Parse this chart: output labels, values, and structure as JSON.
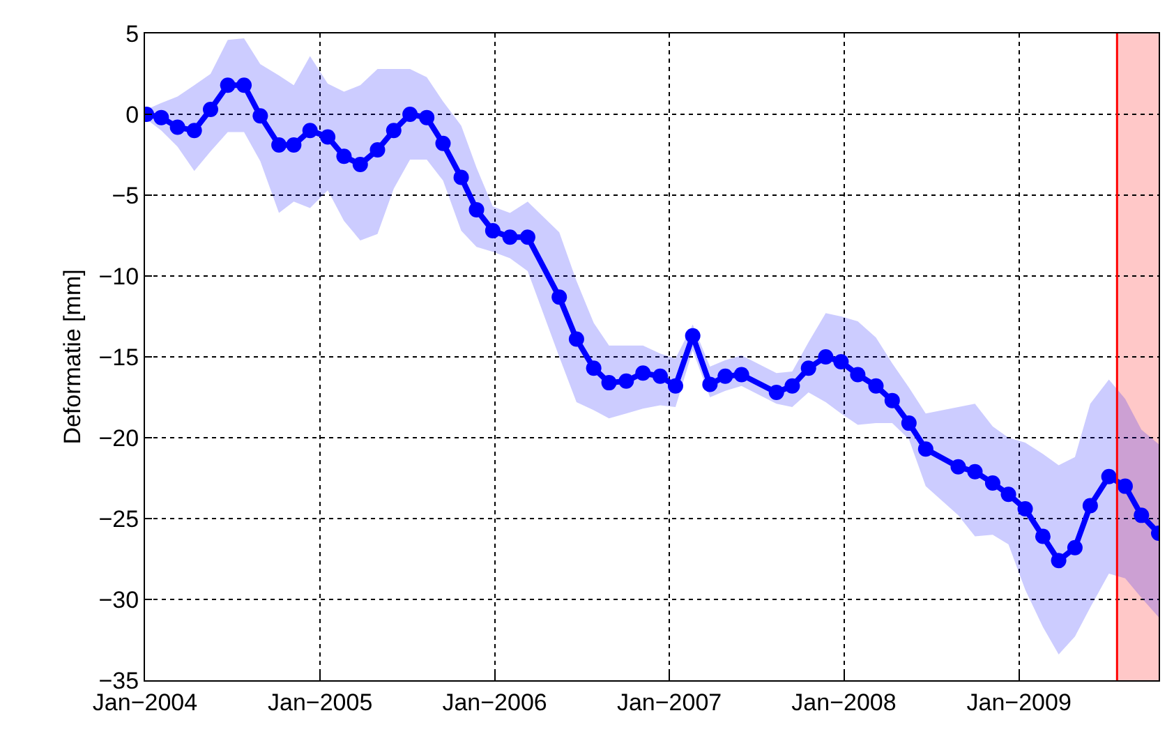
{
  "chart_data": {
    "type": "line",
    "ylabel": "Deformatie [mm]",
    "x": [
      "2004-01-04",
      "2004-02-04",
      "2004-03-09",
      "2004-04-13",
      "2004-05-17",
      "2004-06-22",
      "2004-07-26",
      "2004-08-29",
      "2004-10-07",
      "2004-11-07",
      "2004-12-11",
      "2005-01-17",
      "2005-02-20",
      "2005-03-26",
      "2005-05-01",
      "2005-06-04",
      "2005-07-08",
      "2005-08-12",
      "2005-09-15",
      "2005-10-23",
      "2005-11-24",
      "2005-12-28",
      "2006-02-02",
      "2006-03-11",
      "2006-05-16",
      "2006-06-21",
      "2006-07-27",
      "2006-08-28",
      "2006-10-03",
      "2006-11-07",
      "2006-12-13",
      "2007-01-14",
      "2007-02-19",
      "2007-03-27",
      "2007-04-28",
      "2007-06-01",
      "2007-08-13",
      "2007-09-15",
      "2007-10-19",
      "2007-11-24",
      "2007-12-26",
      "2008-01-30",
      "2008-03-08",
      "2008-04-11",
      "2008-05-16",
      "2008-06-20",
      "2008-08-27",
      "2008-10-01",
      "2008-11-07",
      "2008-12-10",
      "2009-01-14",
      "2009-02-20",
      "2009-03-25",
      "2009-04-28",
      "2009-05-30",
      "2009-07-08",
      "2009-08-11",
      "2009-09-14",
      "2009-10-20"
    ],
    "series": [
      {
        "color": "#0000ff",
        "marker": "circle",
        "line_style": "solid",
        "values": [
          0,
          -0.2,
          -0.8,
          -1.0,
          0.3,
          1.8,
          1.8,
          -0.1,
          -1.9,
          -1.9,
          -1.0,
          -1.4,
          -2.6,
          -3.1,
          -2.2,
          -1.0,
          0,
          -0.2,
          -1.8,
          -3.9,
          -5.9,
          -7.2,
          -7.6,
          -7.6,
          -11.3,
          -13.9,
          -15.7,
          -16.6,
          -16.5,
          -16.0,
          -16.2,
          -16.8,
          -13.7,
          -16.7,
          -16.2,
          -16.1,
          -17.2,
          -16.8,
          -15.7,
          -15.0,
          -15.3,
          -16.1,
          -16.8,
          -17.7,
          -19.1,
          -20.7,
          -21.8,
          -22.1,
          -22.8,
          -23.5,
          -24.4,
          -26.1,
          -27.6,
          -26.8,
          -24.2,
          -22.4,
          -23.0,
          -24.8,
          -25.9
        ],
        "upper": [
          0.3,
          0.7,
          1.1,
          1.8,
          2.5,
          4.6,
          4.7,
          3.1,
          2.4,
          1.8,
          3.6,
          1.9,
          1.4,
          1.8,
          2.8,
          2.8,
          2.8,
          2.3,
          0.8,
          -0.7,
          -3.3,
          -5.7,
          -6.1,
          -5.4,
          -7.3,
          -10.3,
          -12.9,
          -14.3,
          -14.3,
          -14.3,
          -14.8,
          -15.1,
          -13.0,
          -15.6,
          -15.2,
          -14.9,
          -16.0,
          -15.9,
          -14.1,
          -12.3,
          -12.5,
          -12.8,
          -13.8,
          -15.4,
          -16.9,
          -18.5,
          -18.1,
          -17.9,
          -19.3,
          -20.0,
          -20.3,
          -21.0,
          -21.7,
          -21.2,
          -17.9,
          -16.4,
          -17.6,
          -19.5,
          -20.4
        ],
        "lower": [
          -0.3,
          -1.0,
          -2.0,
          -3.5,
          -2.3,
          -1.1,
          -1.1,
          -2.9,
          -6.1,
          -5.4,
          -5.8,
          -4.7,
          -6.6,
          -7.8,
          -7.4,
          -4.6,
          -2.8,
          -2.8,
          -4.1,
          -7.2,
          -8.2,
          -8.5,
          -8.9,
          -9.7,
          -15.0,
          -17.8,
          -18.3,
          -18.8,
          -18.5,
          -18.2,
          -18.0,
          -18.1,
          -14.6,
          -17.5,
          -17.1,
          -16.8,
          -17.9,
          -18.1,
          -17.2,
          -17.8,
          -18.5,
          -19.2,
          -19.1,
          -19.1,
          -20.1,
          -23.0,
          -24.8,
          -26.1,
          -26.0,
          -26.6,
          -29.4,
          -31.7,
          -33.4,
          -32.3,
          -30.5,
          -28.4,
          -28.7,
          -29.9,
          -31.1
        ]
      }
    ],
    "xlim": [
      "2004-01-01",
      "2009-10-20"
    ],
    "xticks": [
      {
        "value": "2004-01-01",
        "label": "Jan−2004"
      },
      {
        "value": "2005-01-01",
        "label": "Jan−2005"
      },
      {
        "value": "2006-01-01",
        "label": "Jan−2006"
      },
      {
        "value": "2007-01-01",
        "label": "Jan−2007"
      },
      {
        "value": "2008-01-01",
        "label": "Jan−2008"
      },
      {
        "value": "2009-01-01",
        "label": "Jan−2009"
      }
    ],
    "ylim": [
      -35,
      5
    ],
    "yticks": [
      -35,
      -30,
      -25,
      -20,
      -15,
      -10,
      -5,
      0,
      5
    ],
    "grid": true,
    "bands": [
      {
        "axis": "x",
        "from": "2009-07-25",
        "to": "2009-10-20",
        "color": "#ffc8c8"
      }
    ],
    "ref_lines": [
      {
        "axis": "x",
        "value": "2009-07-25",
        "color": "#ff0000",
        "line_style": "solid"
      }
    ]
  }
}
